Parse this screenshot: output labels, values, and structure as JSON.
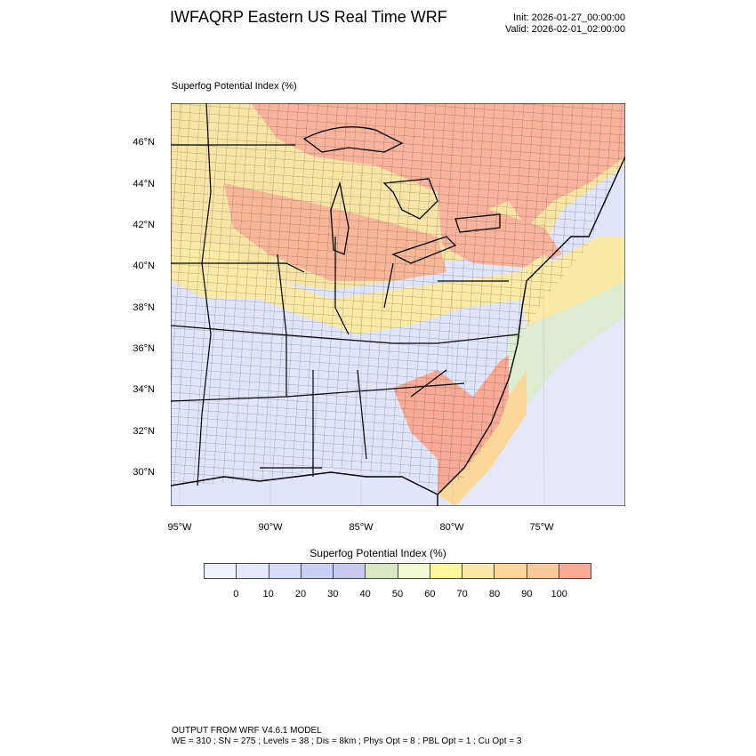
{
  "title": "IWFAQRP Eastern US Real Time WRF",
  "init_label": "Init: 2026-01-27_00:00:00",
  "valid_label": "Valid: 2026-02-01_02:00:00",
  "map_label": "Superfog Potential Index   (%)",
  "lat_labels": [
    "46°N",
    "44°N",
    "42°N",
    "40°N",
    "38°N",
    "36°N",
    "34°N",
    "32°N",
    "30°N"
  ],
  "lon_labels": [
    "95°W",
    "90°W",
    "85°W",
    "80°W",
    "75°W"
  ],
  "legend": {
    "title": "Superfog Potential Index  (%)",
    "tick_labels": [
      "0",
      "10",
      "20",
      "30",
      "40",
      "50",
      "60",
      "70",
      "80",
      "90",
      "100"
    ],
    "colors": [
      "#eef1fb",
      "#e3e9fb",
      "#d4dcf8",
      "#c8d0f4",
      "#c7c8f0",
      "#d8e9c4",
      "#f0f9d2",
      "#fdf79b",
      "#fce8a8",
      "#fbd89a",
      "#f9c89b",
      "#f8aa94"
    ]
  },
  "footer": {
    "line1": "OUTPUT FROM WRF V4.6.1 MODEL",
    "line2": "WE = 310 ; SN = 275 ; Levels = 38 ; Dis = 8km ; Phys Opt = 8 ; PBL Opt = 1 ; Cu Opt = 3"
  }
}
